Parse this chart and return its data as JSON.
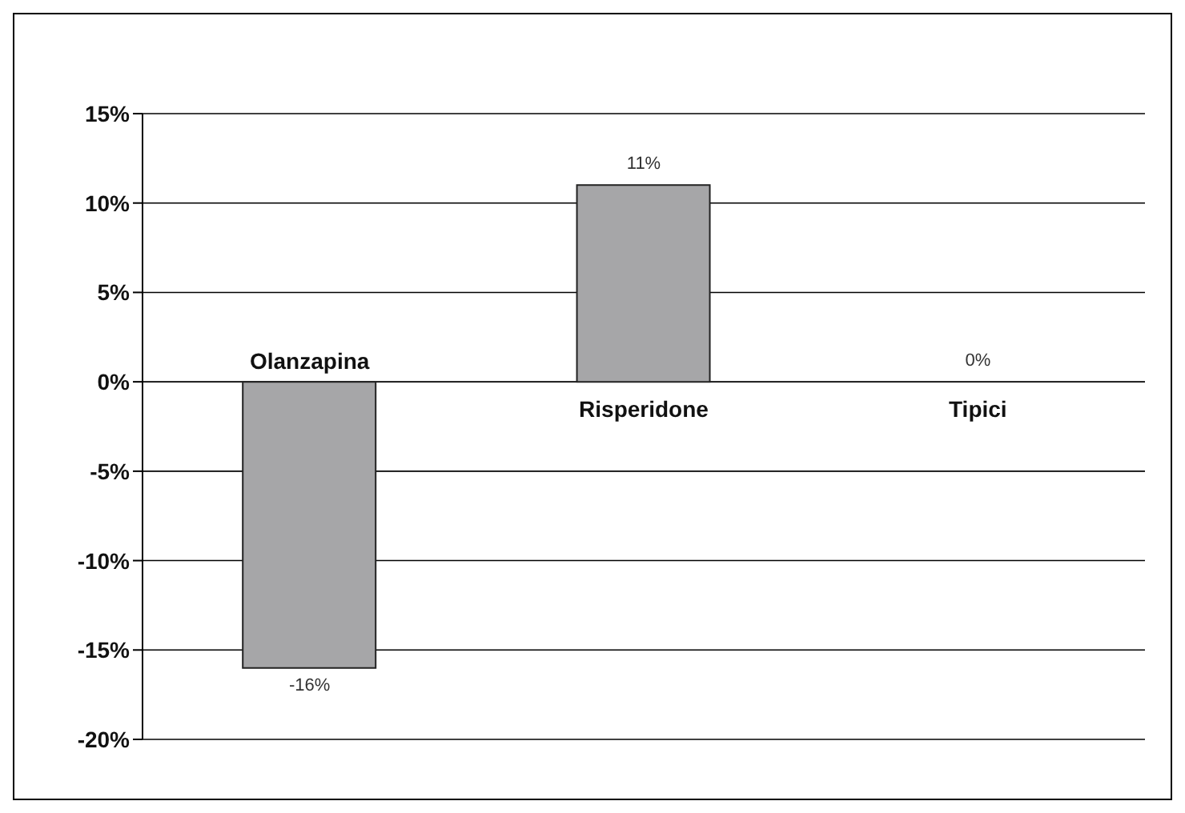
{
  "chart_data": {
    "type": "bar",
    "categories": [
      "Olanzapina",
      "Risperidone",
      "Tipici"
    ],
    "values": [
      -16,
      11,
      0
    ],
    "color": "#a6a6a8",
    "value_labels": [
      "-16%",
      "11%",
      "0%"
    ],
    "ylim": [
      -20,
      15
    ],
    "yticks": [
      {
        "value": -20,
        "label": "-20%"
      },
      {
        "value": -15,
        "label": "-15%"
      },
      {
        "value": -10,
        "label": "-10%"
      },
      {
        "value": -5,
        "label": "-5%"
      },
      {
        "value": 0,
        "label": "0%"
      },
      {
        "value": 5,
        "label": "5%"
      },
      {
        "value": 10,
        "label": "10%"
      },
      {
        "value": 15,
        "label": "15%"
      }
    ],
    "grid": "y"
  }
}
